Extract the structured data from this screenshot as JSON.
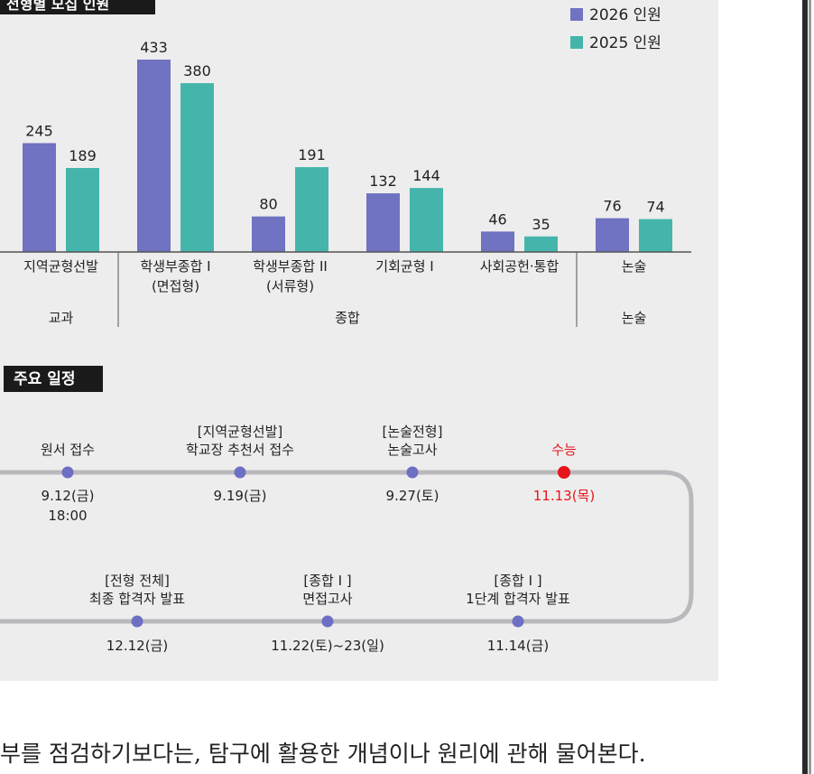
{
  "recruitment": {
    "title": "전형별 모집 인원",
    "chart_data": {
      "type": "bar",
      "categories": [
        "지역균형선발",
        "학생부종합 I (면접형)",
        "학생부종합 II (서류형)",
        "기회균형 I",
        "사회공헌·통합",
        "논술"
      ],
      "category_lines": [
        [
          "지역균형선발"
        ],
        [
          "학생부종합 I",
          "(면접형)"
        ],
        [
          "학생부종합 II",
          "(서류형)"
        ],
        [
          "기회균형 I"
        ],
        [
          "사회공헌·통합"
        ],
        [
          "논술"
        ]
      ],
      "series": [
        {
          "name": "2026 인원",
          "values": [
            245,
            433,
            80,
            132,
            46,
            76
          ]
        },
        {
          "name": "2025 인원",
          "values": [
            189,
            380,
            191,
            144,
            35,
            74
          ]
        }
      ],
      "colors": [
        "#7072c2",
        "#45b5ac"
      ],
      "groups": [
        {
          "label": "교과",
          "categories": [
            0
          ]
        },
        {
          "label": "종합",
          "categories": [
            1,
            2,
            3,
            4
          ]
        },
        {
          "label": "논술",
          "categories": [
            5
          ]
        }
      ],
      "legend_position": "top-right",
      "ylim": [
        0,
        433
      ],
      "grid": false
    }
  },
  "schedule": {
    "title": "주요 일정",
    "colors": {
      "track": "#b9b9bd",
      "dot": "#6d6fc4",
      "highlight": "#e8141c"
    },
    "top_row": [
      {
        "lines": [
          "원서 접수"
        ],
        "dates": [
          "9.12(금)",
          "18:00"
        ],
        "highlight": false
      },
      {
        "lines": [
          "[지역균형선발]",
          "학교장 추천서 접수"
        ],
        "dates": [
          "9.19(금)"
        ],
        "highlight": false
      },
      {
        "lines": [
          "[논술전형]",
          "논술고사"
        ],
        "dates": [
          "9.27(토)"
        ],
        "highlight": false
      },
      {
        "lines": [
          "수능"
        ],
        "dates": [
          "11.13(목)"
        ],
        "highlight": true
      }
    ],
    "bottom_row": [
      {
        "lines": [
          "[전형 전체]",
          "최종 합격자 발표"
        ],
        "dates": [
          "12.12(금)"
        ],
        "highlight": false
      },
      {
        "lines": [
          "[종합 I ]",
          "면접고사"
        ],
        "dates": [
          "11.22(토)~23(일)"
        ],
        "highlight": false
      },
      {
        "lines": [
          "[종합 I ]",
          "1단계 합격자 발표"
        ],
        "dates": [
          "11.14(금)"
        ],
        "highlight": false
      }
    ]
  },
  "article_text": "부를 점검하기보다는, 탐구에 활용한 개념이나 원리에 관해 물어본다."
}
